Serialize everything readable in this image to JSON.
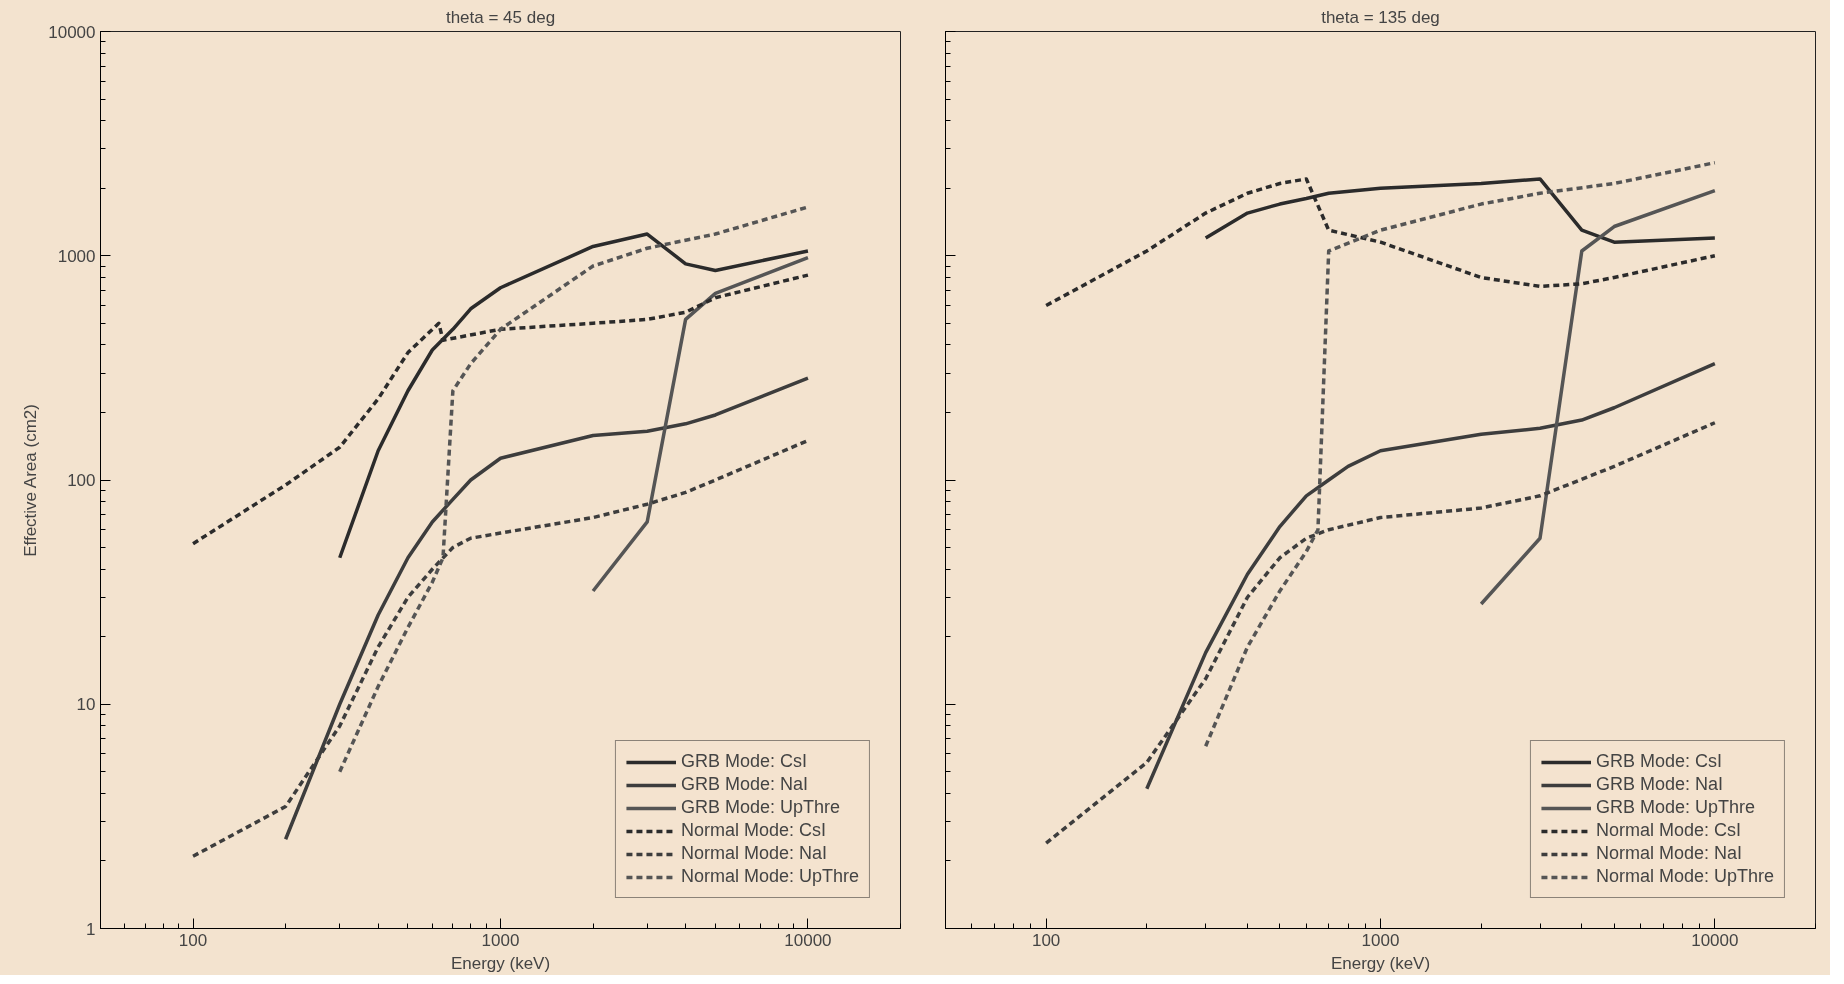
{
  "chart_data": [
    {
      "type": "line",
      "title": "theta = 45 deg",
      "xlabel": "Energy (keV)",
      "ylabel": "Effective Area (cm2)",
      "log": "xy",
      "xlim": [
        50,
        20000
      ],
      "ylim": [
        1,
        10000
      ],
      "xticks": [
        100,
        1000,
        10000
      ],
      "yticks": [
        1,
        10,
        100,
        1000,
        10000
      ],
      "grid": false,
      "legend": "bottom right",
      "series": [
        {
          "name": "GRB Mode: CsI",
          "color": "#2b2b2b",
          "line_style": "solid",
          "x": [
            300,
            400,
            500,
            600,
            700,
            800,
            1000,
            2000,
            3000,
            4000,
            5000,
            10000
          ],
          "values": [
            45,
            135,
            250,
            380,
            470,
            580,
            720,
            1100,
            1250,
            920,
            860,
            1050
          ]
        },
        {
          "name": "GRB Mode: NaI",
          "color": "#3d3d3d",
          "line_style": "solid",
          "x": [
            200,
            300,
            400,
            500,
            600,
            700,
            800,
            1000,
            2000,
            3000,
            4000,
            5000,
            10000
          ],
          "values": [
            2.5,
            10,
            25,
            45,
            65,
            82,
            100,
            125,
            158,
            165,
            178,
            195,
            285
          ]
        },
        {
          "name": "GRB Mode: UpThre",
          "color": "#555555",
          "line_style": "solid",
          "x": [
            2000,
            3000,
            4000,
            5000,
            10000
          ],
          "values": [
            32,
            65,
            520,
            680,
            980
          ]
        },
        {
          "name": "Normal Mode: CsI",
          "color": "#2b2b2b",
          "line_style": "dashed",
          "x": [
            100,
            200,
            300,
            400,
            500,
            630,
            650,
            1000,
            2000,
            3000,
            4000,
            5000,
            10000
          ],
          "values": [
            52,
            95,
            140,
            230,
            370,
            500,
            420,
            470,
            500,
            520,
            560,
            650,
            820
          ]
        },
        {
          "name": "Normal Mode: NaI",
          "color": "#3d3d3d",
          "line_style": "dashed",
          "x": [
            100,
            200,
            300,
            400,
            500,
            600,
            700,
            800,
            1000,
            2000,
            3000,
            4000,
            5000,
            10000
          ],
          "values": [
            2.1,
            3.5,
            8,
            18,
            30,
            40,
            50,
            55,
            58,
            68,
            78,
            88,
            100,
            150
          ]
        },
        {
          "name": "Normal Mode: UpThre",
          "color": "#555555",
          "line_style": "dashed",
          "x": [
            300,
            400,
            500,
            600,
            650,
            700,
            800,
            1000,
            2000,
            3000,
            5000,
            10000
          ],
          "values": [
            5,
            12,
            22,
            35,
            45,
            250,
            330,
            470,
            900,
            1080,
            1250,
            1650
          ]
        }
      ]
    },
    {
      "type": "line",
      "title": "theta = 135 deg",
      "xlabel": "Energy (keV)",
      "log": "xy",
      "xlim": [
        50,
        20000
      ],
      "ylim": [
        1,
        10000
      ],
      "xticks": [
        100,
        1000,
        10000
      ],
      "yticks": [
        1,
        10,
        100,
        1000,
        10000
      ],
      "tick_labels": "x",
      "grid": false,
      "legend": "bottom right",
      "series": [
        {
          "name": "GRB Mode: CsI",
          "color": "#2b2b2b",
          "line_style": "solid",
          "x": [
            300,
            400,
            500,
            600,
            700,
            1000,
            2000,
            3000,
            4000,
            5000,
            10000
          ],
          "values": [
            1200,
            1550,
            1700,
            1800,
            1900,
            2000,
            2100,
            2200,
            1300,
            1150,
            1200
          ]
        },
        {
          "name": "GRB Mode: NaI",
          "color": "#3d3d3d",
          "line_style": "solid",
          "x": [
            200,
            300,
            400,
            500,
            600,
            700,
            800,
            1000,
            2000,
            3000,
            4000,
            5000,
            10000
          ],
          "values": [
            4.2,
            17,
            38,
            62,
            85,
            100,
            115,
            135,
            160,
            170,
            185,
            210,
            330
          ]
        },
        {
          "name": "GRB Mode: UpThre",
          "color": "#555555",
          "line_style": "solid",
          "x": [
            2000,
            3000,
            4000,
            5000,
            10000
          ],
          "values": [
            28,
            55,
            1050,
            1350,
            1950
          ]
        },
        {
          "name": "Normal Mode: CsI",
          "color": "#2b2b2b",
          "line_style": "dashed",
          "x": [
            100,
            200,
            300,
            400,
            500,
            600,
            700,
            1000,
            2000,
            3000,
            4000,
            5000,
            10000
          ],
          "values": [
            600,
            1050,
            1550,
            1900,
            2100,
            2200,
            1300,
            1150,
            800,
            730,
            750,
            800,
            1000
          ]
        },
        {
          "name": "Normal Mode: NaI",
          "color": "#3d3d3d",
          "line_style": "dashed",
          "x": [
            100,
            200,
            300,
            400,
            500,
            600,
            700,
            1000,
            2000,
            3000,
            5000,
            10000
          ],
          "values": [
            2.4,
            5.5,
            13,
            30,
            45,
            55,
            60,
            68,
            75,
            85,
            115,
            180
          ]
        },
        {
          "name": "Normal Mode: UpThre",
          "color": "#555555",
          "line_style": "dashed",
          "x": [
            300,
            400,
            500,
            600,
            650,
            700,
            1000,
            2000,
            3000,
            5000,
            10000
          ],
          "values": [
            6.5,
            18,
            32,
            48,
            60,
            1050,
            1300,
            1700,
            1900,
            2100,
            2600
          ]
        }
      ]
    }
  ]
}
